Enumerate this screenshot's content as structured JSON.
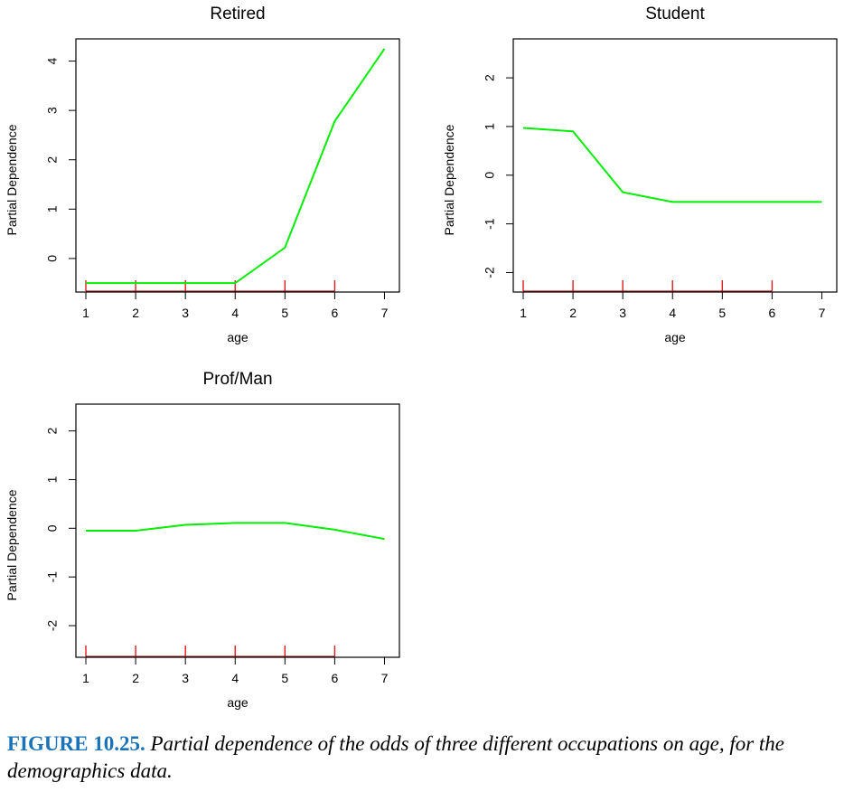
{
  "chart_data": [
    {
      "type": "line",
      "title": "Retired",
      "xlabel": "age",
      "ylabel": "Partial Dependence",
      "xlim": [
        0.8,
        7.3
      ],
      "ylim": [
        -0.68,
        4.45
      ],
      "xticks": [
        1,
        2,
        3,
        4,
        5,
        6,
        7
      ],
      "yticks": [
        0,
        1,
        2,
        3,
        4
      ],
      "x": [
        1,
        2,
        3,
        4,
        5,
        6,
        7
      ],
      "y": [
        -0.5,
        -0.5,
        -0.5,
        -0.5,
        0.22,
        2.78,
        4.25
      ],
      "rug": [
        1,
        2,
        3,
        4,
        5,
        6
      ],
      "line_color": "#00ee00",
      "rug_color": "#e31a1c"
    },
    {
      "type": "line",
      "title": "Student",
      "xlabel": "age",
      "ylabel": "Partial Dependence",
      "xlim": [
        0.8,
        7.3
      ],
      "ylim": [
        -2.4,
        2.8
      ],
      "xticks": [
        1,
        2,
        3,
        4,
        5,
        6,
        7
      ],
      "yticks": [
        -2,
        -1,
        0,
        1,
        2
      ],
      "x": [
        1,
        2,
        3,
        4,
        5,
        6,
        7
      ],
      "y": [
        0.97,
        0.9,
        -0.35,
        -0.55,
        -0.55,
        -0.55,
        -0.55
      ],
      "rug": [
        1,
        2,
        3,
        4,
        5,
        6
      ],
      "line_color": "#00ee00",
      "rug_color": "#e31a1c"
    },
    {
      "type": "line",
      "title": "Prof/Man",
      "xlabel": "age",
      "ylabel": "Partial Dependence",
      "xlim": [
        0.8,
        7.3
      ],
      "ylim": [
        -2.65,
        2.55
      ],
      "xticks": [
        1,
        2,
        3,
        4,
        5,
        6,
        7
      ],
      "yticks": [
        -2,
        -1,
        0,
        1,
        2
      ],
      "x": [
        1,
        2,
        3,
        4,
        5,
        6,
        7
      ],
      "y": [
        -0.05,
        -0.05,
        0.07,
        0.11,
        0.11,
        -0.03,
        -0.22
      ],
      "rug": [
        1,
        2,
        3,
        4,
        5,
        6
      ],
      "line_color": "#00ee00",
      "rug_color": "#e31a1c"
    }
  ],
  "caption": {
    "label": "FIGURE 10.25.",
    "text": "Partial dependence of the odds of three different occupations on age, for the demographics data."
  }
}
